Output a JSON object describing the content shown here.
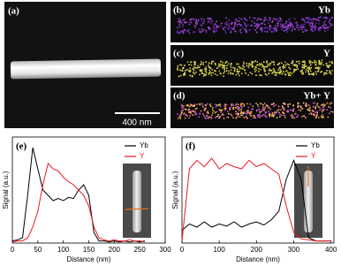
{
  "panels": {
    "a": {
      "label": "(a)",
      "scale_bar": "400 nm"
    },
    "b": {
      "label": "(b)",
      "element": "Yb"
    },
    "c": {
      "label": "(c)",
      "element": "Y"
    },
    "d": {
      "label": "(d)",
      "element": "Yb+ Y"
    }
  },
  "chart_data": [
    {
      "type": "line",
      "panel_label": "(e)",
      "x_label": "Distance (nm)",
      "y_label": "Signal (a.u.)",
      "x": [
        0,
        10,
        20,
        30,
        40,
        50,
        60,
        70,
        80,
        90,
        100,
        110,
        120,
        130,
        140,
        150,
        160,
        170,
        180,
        190,
        200,
        210,
        220,
        230,
        240,
        250,
        260
      ],
      "series": [
        {
          "name": "Yb",
          "color": "#000000",
          "values": [
            0.02,
            0.03,
            0.05,
            0.45,
            0.9,
            0.7,
            0.5,
            0.45,
            0.4,
            0.42,
            0.4,
            0.43,
            0.42,
            0.5,
            0.55,
            0.45,
            0.1,
            0.02,
            0.02,
            0.01,
            0.02,
            0.01,
            0.02,
            0.01,
            0.02,
            0.01,
            0.02
          ]
        },
        {
          "name": "Y",
          "color": "#e8191f",
          "values": [
            0.01,
            0.02,
            0.02,
            0.05,
            0.15,
            0.3,
            0.55,
            0.75,
            0.7,
            0.68,
            0.62,
            0.58,
            0.55,
            0.5,
            0.45,
            0.35,
            0.15,
            0.05,
            0.03,
            0.02,
            0.03,
            0.02,
            0.02,
            0.03,
            0.02,
            0.02,
            0.01
          ]
        }
      ],
      "xlim": [
        0,
        300
      ],
      "xticks": [
        0,
        50,
        100,
        150,
        200,
        250,
        300
      ],
      "ylim": [
        0,
        1
      ],
      "legend": "upper right"
    },
    {
      "type": "line",
      "panel_label": "(f)",
      "x_label": "Distance (nm)",
      "y_label": "Signal (a.u.)",
      "x": [
        0,
        20,
        40,
        60,
        80,
        100,
        120,
        140,
        160,
        180,
        200,
        220,
        240,
        260,
        280,
        300,
        320,
        340,
        360,
        380,
        400
      ],
      "series": [
        {
          "name": "Yb",
          "color": "#000000",
          "values": [
            0.12,
            0.18,
            0.15,
            0.2,
            0.15,
            0.18,
            0.16,
            0.2,
            0.15,
            0.18,
            0.2,
            0.17,
            0.22,
            0.3,
            0.6,
            0.78,
            0.6,
            0.05,
            0.02,
            0.02,
            0.02
          ]
        },
        {
          "name": "Y",
          "color": "#e8191f",
          "values": [
            0.02,
            0.7,
            0.78,
            0.72,
            0.8,
            0.7,
            0.75,
            0.72,
            0.7,
            0.78,
            0.72,
            0.75,
            0.7,
            0.65,
            0.35,
            0.1,
            0.04,
            0.03,
            0.02,
            0.02,
            0.02
          ]
        }
      ],
      "xlim": [
        0,
        408
      ],
      "xticks": [
        0,
        100,
        200,
        300,
        400
      ],
      "ylim": [
        0,
        1
      ],
      "legend": "upper right"
    }
  ]
}
